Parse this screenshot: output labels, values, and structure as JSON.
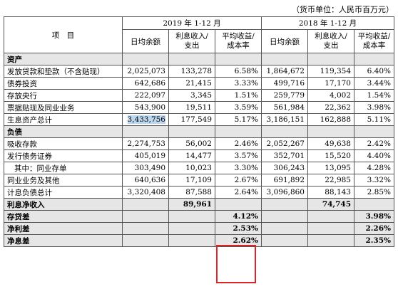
{
  "unit_note": "（货币单位：人民币百万元）",
  "header": {
    "item_label": "项　目",
    "period_2019": "2019 年 1-12 月",
    "period_2018": "2018 年 1-12 月",
    "col_avg_balance": "日均余额",
    "col_interest_l1": "利息收入/",
    "col_interest_l2": "支出",
    "col_rate_l1": "平均收益/",
    "col_rate_l2": "成本率"
  },
  "sections": {
    "assets": "资产",
    "liabilities": "负债"
  },
  "asset_rows": [
    {
      "label": "发放贷款和垫款（不含贴现）",
      "v": [
        "2,025,073",
        "133,278",
        "6.58%",
        "1,864,672",
        "119,354",
        "6.40%"
      ]
    },
    {
      "label": "债券投资",
      "v": [
        "642,686",
        "21,415",
        "3.33%",
        "499,716",
        "17,170",
        "3.44%"
      ]
    },
    {
      "label": "存放央行",
      "v": [
        "222,097",
        "3,345",
        "1.51%",
        "259,779",
        "4,002",
        "1.54%"
      ]
    },
    {
      "label": "票据贴现及同业业务",
      "v": [
        "543,900",
        "19,511",
        "3.59%",
        "561,984",
        "22,362",
        "3.98%"
      ]
    },
    {
      "label": "生息资产总计",
      "v": [
        "3,433,756",
        "177,549",
        "5.17%",
        "3,186,151",
        "162,888",
        "5.11%"
      ]
    }
  ],
  "liability_rows": [
    {
      "label": "吸收存款",
      "v": [
        "2,274,753",
        "56,002",
        "2.46%",
        "2,052,267",
        "49,638",
        "2.42%"
      ]
    },
    {
      "label": "发行债务证券",
      "v": [
        "405,019",
        "14,477",
        "3.57%",
        "352,701",
        "15,520",
        "4.40%"
      ]
    },
    {
      "label": "其中：同业存单",
      "v": [
        "303,490",
        "10,023",
        "3.30%",
        "306,243",
        "13,095",
        "4.28%"
      ]
    },
    {
      "label": "同业业务及其他",
      "v": [
        "640,636",
        "17,109",
        "2.67%",
        "691,892",
        "22,985",
        "3.32%"
      ]
    },
    {
      "label": "计息负债总计",
      "v": [
        "3,320,408",
        "87,588",
        "2.64%",
        "3,096,860",
        "88,143",
        "2.85%"
      ]
    }
  ],
  "net_interest_income": {
    "label": "利息净收入",
    "v2019": "89,961",
    "v2018": "74,745"
  },
  "spreads": [
    {
      "label": "存贷差",
      "v2019": "4.12%",
      "v2018": "3.98%"
    },
    {
      "label": "净利差",
      "v2019": "2.53%",
      "v2018": "2.26%"
    },
    {
      "label": "净息差",
      "v2019": "2.62%",
      "v2018": "2.35%"
    }
  ],
  "colors": {
    "highlight_box": "#d9262b",
    "selection": "#bcd7ee",
    "section_fill": "#e6e6e6"
  }
}
